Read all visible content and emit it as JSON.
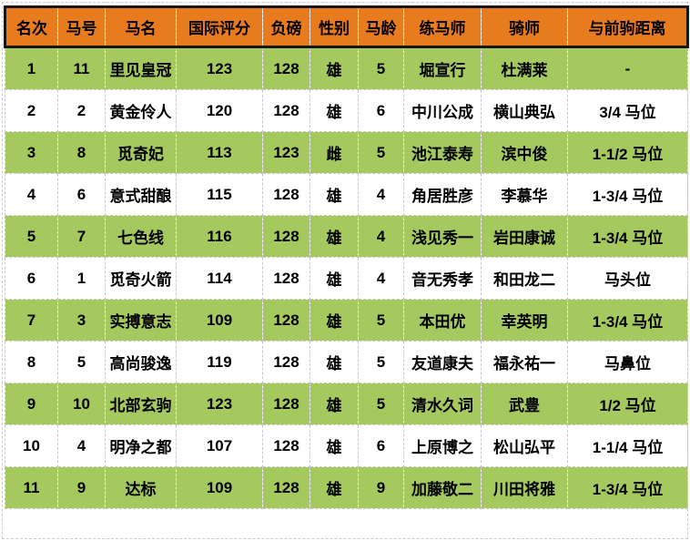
{
  "colors": {
    "header_bg": "#E87B1E",
    "row_green_bg": "#A5C85F",
    "row_white_bg": "#FFFFFF",
    "text": "#000000",
    "header_border": "#161616",
    "grid_dashed": "#C8C8C8"
  },
  "chart_data": {
    "type": "table",
    "title": "",
    "columns": [
      "名次",
      "马号",
      "马名",
      "国际评分",
      "负磅",
      "性别",
      "马龄",
      "练马师",
      "骑师",
      "与前驹距离"
    ],
    "rows": [
      [
        "1",
        "11",
        "里见皇冠",
        "123",
        "128",
        "雄",
        "5",
        "堀宣行",
        "杜满莱",
        "-"
      ],
      [
        "2",
        "2",
        "黄金伶人",
        "120",
        "128",
        "雄",
        "6",
        "中川公成",
        "横山典弘",
        "3/4 马位"
      ],
      [
        "3",
        "8",
        "觅奇妃",
        "113",
        "123",
        "雌",
        "5",
        "池江泰寿",
        "滨中俊",
        "1-1/2 马位"
      ],
      [
        "4",
        "6",
        "意式甜酿",
        "115",
        "128",
        "雄",
        "4",
        "角居胜彦",
        "李慕华",
        "1-3/4 马位"
      ],
      [
        "5",
        "7",
        "七色线",
        "116",
        "128",
        "雄",
        "4",
        "浅见秀一",
        "岩田康诚",
        "1-3/4 马位"
      ],
      [
        "6",
        "1",
        "觅奇火箭",
        "114",
        "128",
        "雄",
        "4",
        "音无秀孝",
        "和田龙二",
        "马头位"
      ],
      [
        "7",
        "3",
        "实搏意志",
        "109",
        "128",
        "雄",
        "5",
        "本田优",
        "幸英明",
        "1-3/4 马位"
      ],
      [
        "8",
        "5",
        "高尚骏逸",
        "119",
        "128",
        "雄",
        "5",
        "友道康夫",
        "福永祐一",
        "马鼻位"
      ],
      [
        "9",
        "10",
        "北部玄驹",
        "123",
        "128",
        "雄",
        "5",
        "清水久词",
        "武豊",
        "1/2 马位"
      ],
      [
        "10",
        "4",
        "明净之都",
        "107",
        "128",
        "雄",
        "6",
        "上原博之",
        "松山弘平",
        "1-1/4 马位"
      ],
      [
        "11",
        "9",
        "达标",
        "109",
        "128",
        "雄",
        "9",
        "加藤敬二",
        "川田将雅",
        "1-3/4 马位"
      ]
    ],
    "layout_hints": {
      "header_style": "orange solid-black-outline",
      "row_striping": "odd rows green, even rows white",
      "grid": "dashed light-gray cell borders",
      "row_count": 11,
      "column_count": 10
    }
  }
}
